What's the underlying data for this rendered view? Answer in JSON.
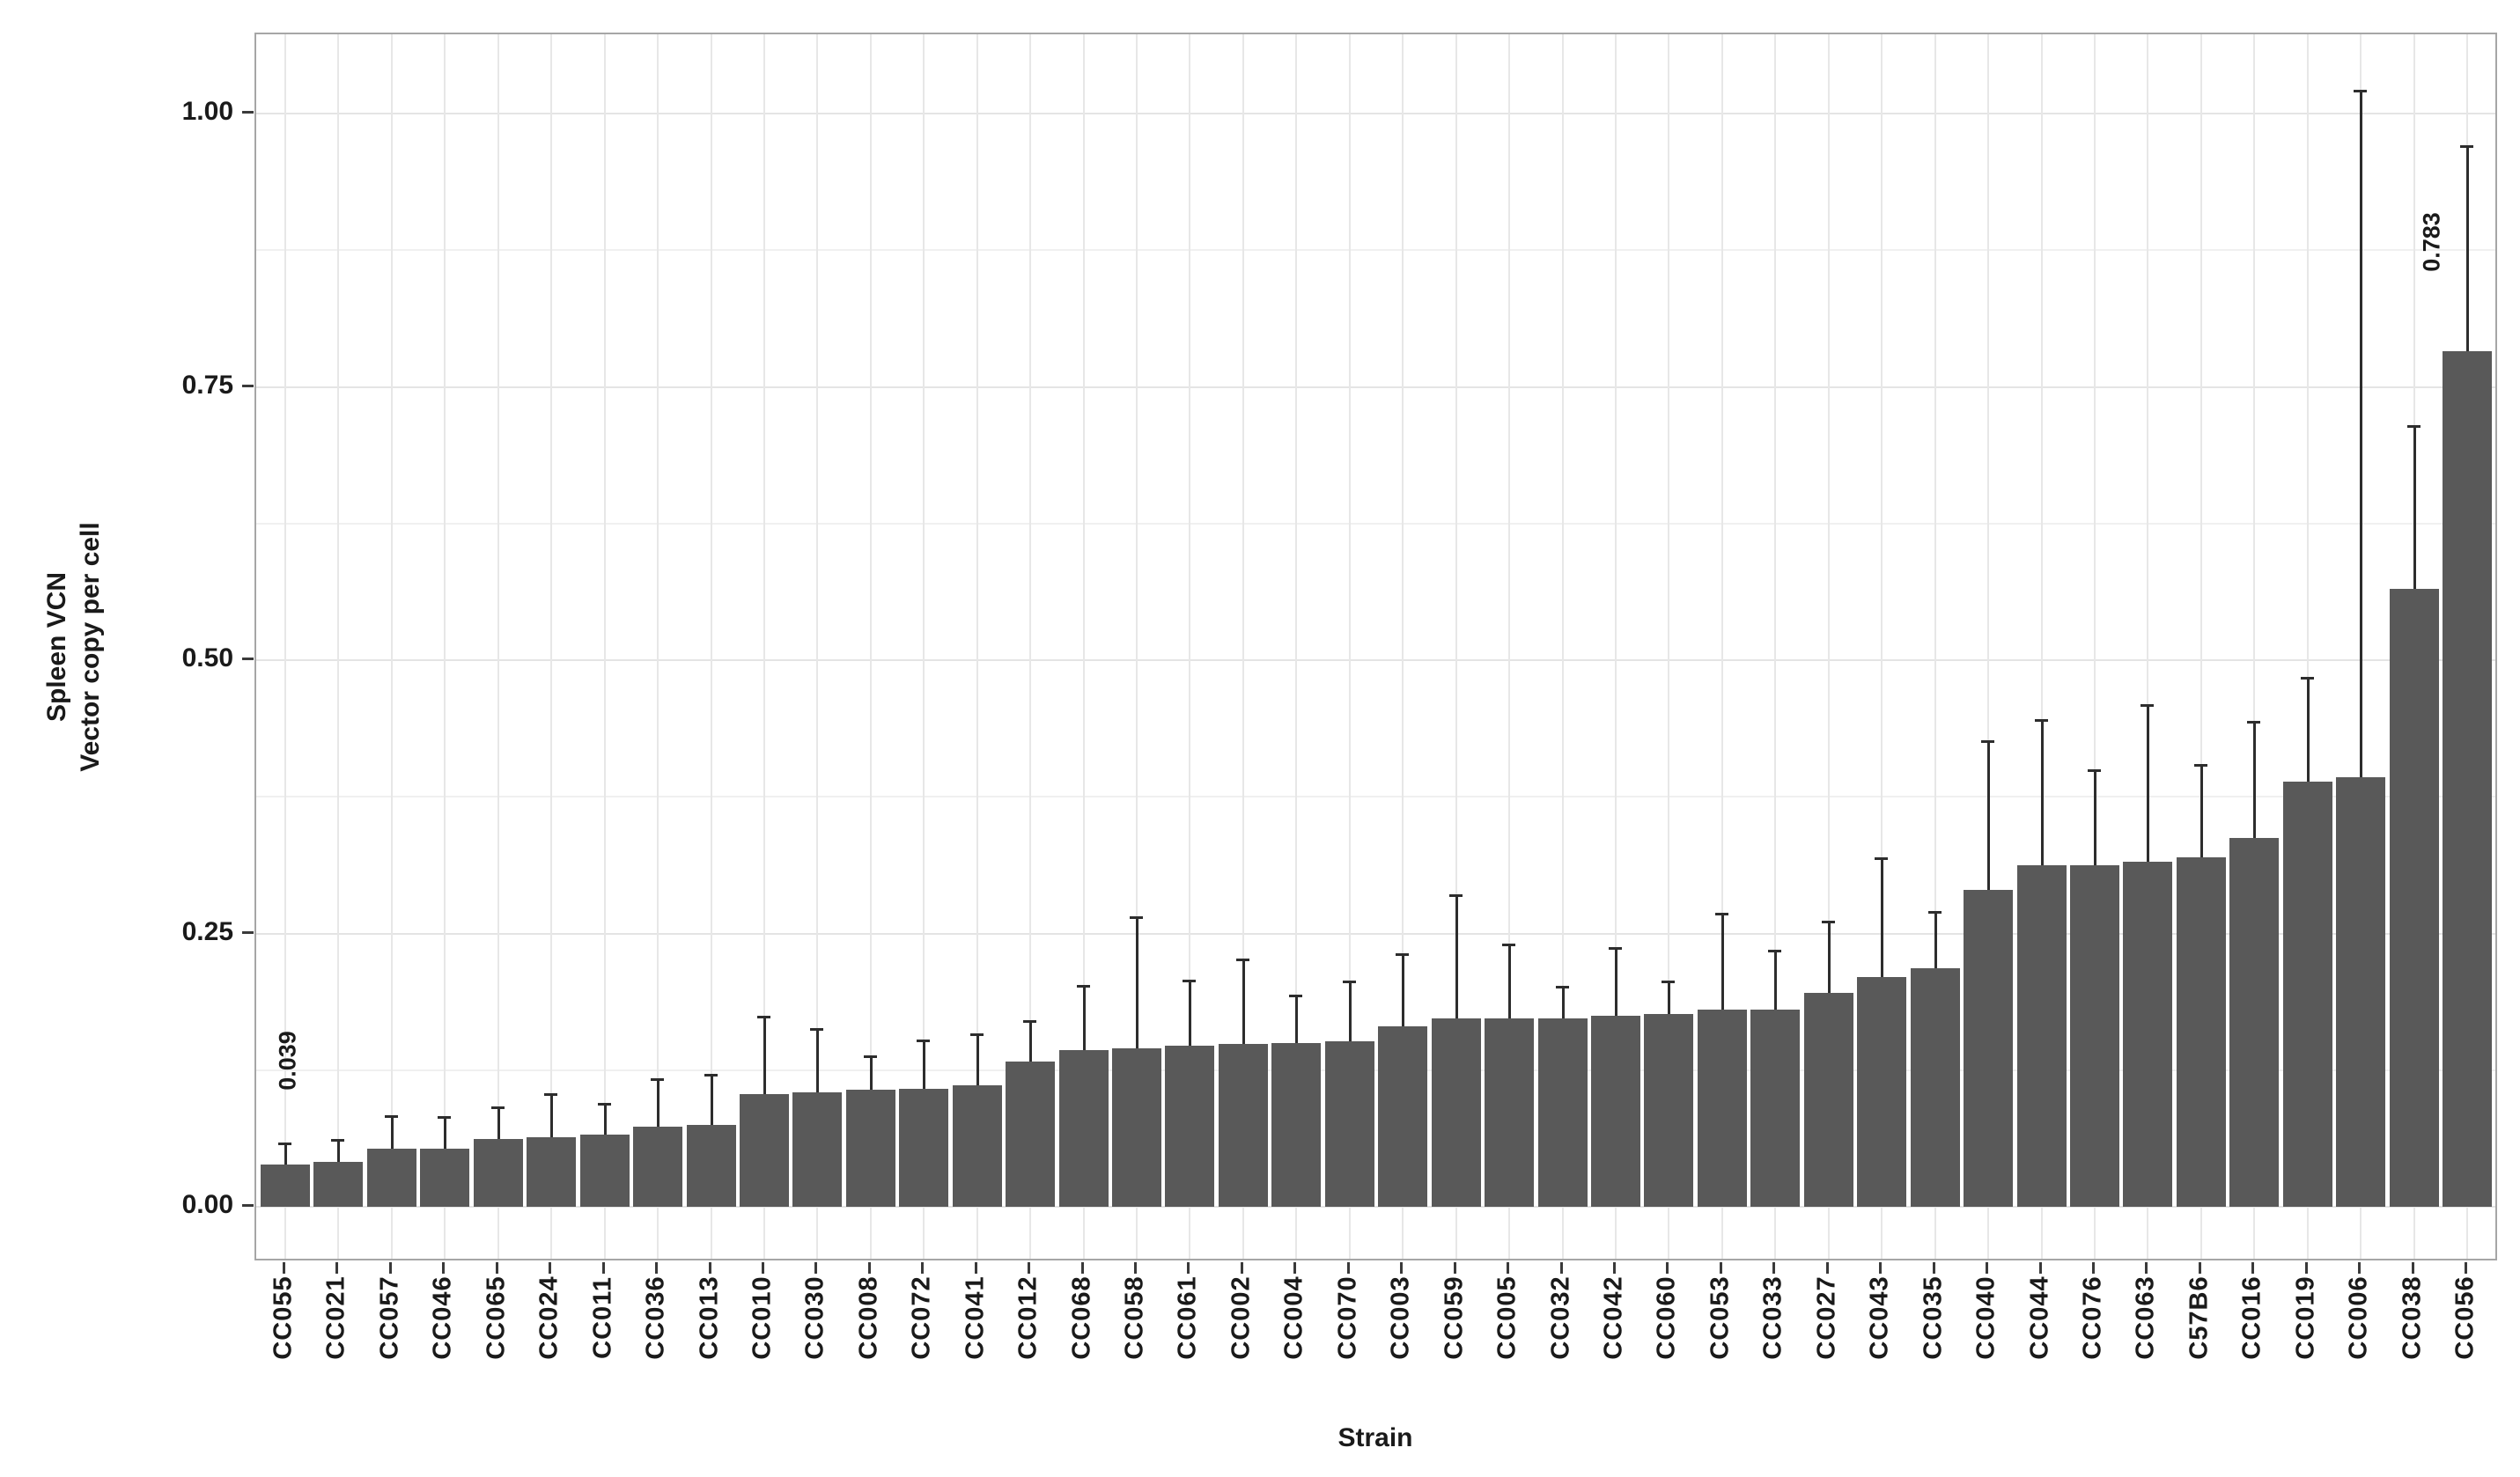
{
  "chart_data": {
    "type": "bar",
    "title": "",
    "xlabel": "Strain",
    "ylabel_line1": "Spleen VCN",
    "ylabel_line2": "Vector copy per cell",
    "categories": [
      "CC055",
      "CC021",
      "CC057",
      "CC046",
      "CC065",
      "CC024",
      "CC011",
      "CC036",
      "CC013",
      "CC010",
      "CC030",
      "CC008",
      "CC072",
      "CC041",
      "CC012",
      "CC068",
      "CC058",
      "CC061",
      "CC002",
      "CC004",
      "CC070",
      "CC003",
      "CC059",
      "CC005",
      "CC032",
      "CC042",
      "CC060",
      "CC053",
      "CC033",
      "CC027",
      "CC043",
      "CC035",
      "CC040",
      "CC044",
      "CC076",
      "CC063",
      "C57B6",
      "CC016",
      "CC019",
      "CC006",
      "CC038",
      "CC056"
    ],
    "values": [
      0.039,
      0.041,
      0.053,
      0.053,
      0.062,
      0.064,
      0.066,
      0.073,
      0.075,
      0.103,
      0.105,
      0.107,
      0.108,
      0.111,
      0.133,
      0.143,
      0.145,
      0.147,
      0.149,
      0.15,
      0.151,
      0.165,
      0.172,
      0.172,
      0.172,
      0.175,
      0.176,
      0.18,
      0.18,
      0.196,
      0.21,
      0.218,
      0.29,
      0.312,
      0.312,
      0.316,
      0.32,
      0.337,
      0.389,
      0.393,
      0.565,
      0.783
    ],
    "errors_up": [
      0.019,
      0.02,
      0.03,
      0.029,
      0.029,
      0.039,
      0.028,
      0.044,
      0.046,
      0.071,
      0.058,
      0.031,
      0.044,
      0.047,
      0.037,
      0.059,
      0.12,
      0.06,
      0.077,
      0.043,
      0.055,
      0.066,
      0.113,
      0.068,
      0.029,
      0.062,
      0.03,
      0.088,
      0.054,
      0.065,
      0.109,
      0.052,
      0.136,
      0.133,
      0.087,
      0.143,
      0.084,
      0.107,
      0.095,
      0.628,
      0.149,
      0.187
    ],
    "ytick_values": [
      0,
      0.25,
      0.5,
      0.75,
      1.0
    ],
    "ytick_labels": [
      "0.00",
      "0.25",
      "0.50",
      "0.75",
      "1.00"
    ],
    "minor_gridline_values": [
      0.125,
      0.375,
      0.625,
      0.875
    ],
    "ylim": [
      -0.051,
      1.073
    ],
    "grid": "major and minor horizontal, vertical line at each category",
    "legend": "none",
    "bar_color": "#595959",
    "error_color": "#2d2d2d",
    "annotations": [
      {
        "text": "0.039",
        "category": "CC055",
        "anchor_value": 0.132,
        "dx": 5
      },
      {
        "text": "0.783",
        "category": "CC056",
        "anchor_value": 0.881,
        "dx": -38
      }
    ]
  }
}
